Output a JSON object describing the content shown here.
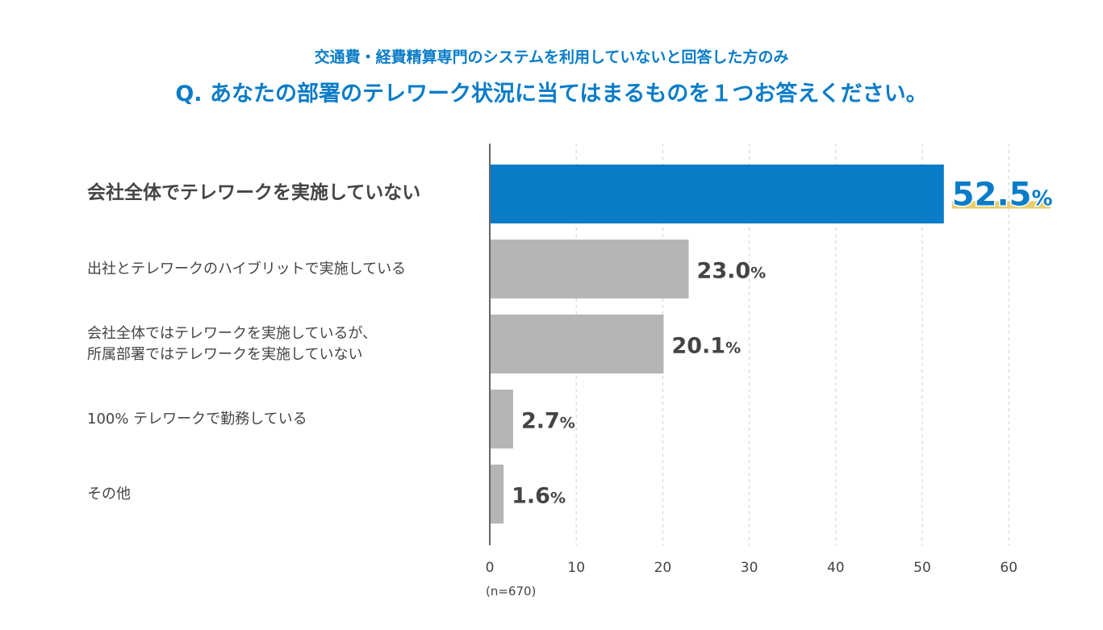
{
  "chart_data": {
    "type": "bar",
    "orientation": "horizontal",
    "subtitle": "交通費・経費精算専門のシステムを利用していないと回答した方のみ",
    "title": "Q. あなたの部署のテレワーク状況に当てはまるものを１つお答えください。",
    "categories": [
      "会社全体でテレワークを実施していない",
      "出社とテレワークのハイブリットで実施している",
      "会社全体ではテレワークを実施しているが、\n所属部署ではテレワークを実施していない",
      "100% テレワークで勤務している",
      "その他"
    ],
    "values": [
      52.5,
      23.0,
      20.1,
      2.7,
      1.6
    ],
    "value_suffix": "%",
    "highlight_index": 0,
    "xlim": [
      0,
      60
    ],
    "xticks": [
      0,
      10,
      20,
      30,
      40,
      50,
      60
    ],
    "grid": true,
    "note": "(n=670)",
    "colors": {
      "highlight": "#0a7cc8",
      "bar": "#b5b5b5",
      "underline": "#e6cd6e",
      "text": "#444444"
    }
  }
}
